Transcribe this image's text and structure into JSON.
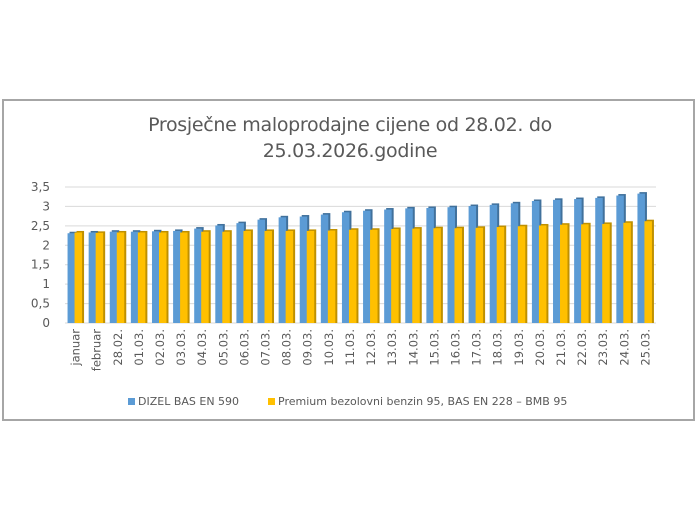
{
  "title_line1": "Prosječne maloprodajne cijene od 28.02. do",
  "title_line2": "25.03.2026.godine",
  "legend": [
    {
      "label": "DIZEL BAS EN 590",
      "color": "#5b9bd5"
    },
    {
      "label": "Premium bezolovni benzin 95, BAS EN 228 – BMB 95",
      "color": "#ffc000"
    }
  ],
  "chart_data": {
    "type": "bar",
    "title": "Prosječne maloprodajne cijene od 28.02. do 25.03.2026.godine",
    "xlabel": "",
    "ylabel": "",
    "ylim": [
      0,
      3.5
    ],
    "yticks": [
      "0",
      "0,5",
      "1",
      "1,5",
      "2",
      "2,5",
      "3",
      "3,5"
    ],
    "grid": true,
    "legend_position": "bottom",
    "categories": [
      "januar",
      "februar",
      "28.02.",
      "01.03.",
      "02.03.",
      "03.03.",
      "04.03.",
      "05.03.",
      "06.03.",
      "07.03.",
      "08.03.",
      "09.03.",
      "10.03.",
      "11.03.",
      "12.03.",
      "13.03.",
      "14.03.",
      "15.03.",
      "16.03.",
      "17.03.",
      "18.03.",
      "19.03.",
      "20.03.",
      "21.03.",
      "22.03.",
      "23.03.",
      "24.03.",
      "25.03."
    ],
    "series": [
      {
        "name": "DIZEL BAS EN 590",
        "color": "#5b9bd5",
        "values": [
          2.31,
          2.33,
          2.35,
          2.35,
          2.36,
          2.37,
          2.43,
          2.51,
          2.57,
          2.66,
          2.72,
          2.74,
          2.79,
          2.85,
          2.89,
          2.92,
          2.95,
          2.96,
          2.98,
          3.01,
          3.04,
          3.08,
          3.14,
          3.17,
          3.19,
          3.22,
          3.28,
          3.33
        ]
      },
      {
        "name": "Premium bezolovni benzin 95, BAS EN 228 – BMB 95",
        "color": "#ffc000",
        "values": [
          2.33,
          2.32,
          2.33,
          2.33,
          2.33,
          2.33,
          2.35,
          2.35,
          2.37,
          2.37,
          2.37,
          2.37,
          2.38,
          2.4,
          2.4,
          2.42,
          2.43,
          2.44,
          2.44,
          2.45,
          2.47,
          2.49,
          2.51,
          2.53,
          2.54,
          2.55,
          2.58,
          2.62
        ]
      }
    ]
  }
}
